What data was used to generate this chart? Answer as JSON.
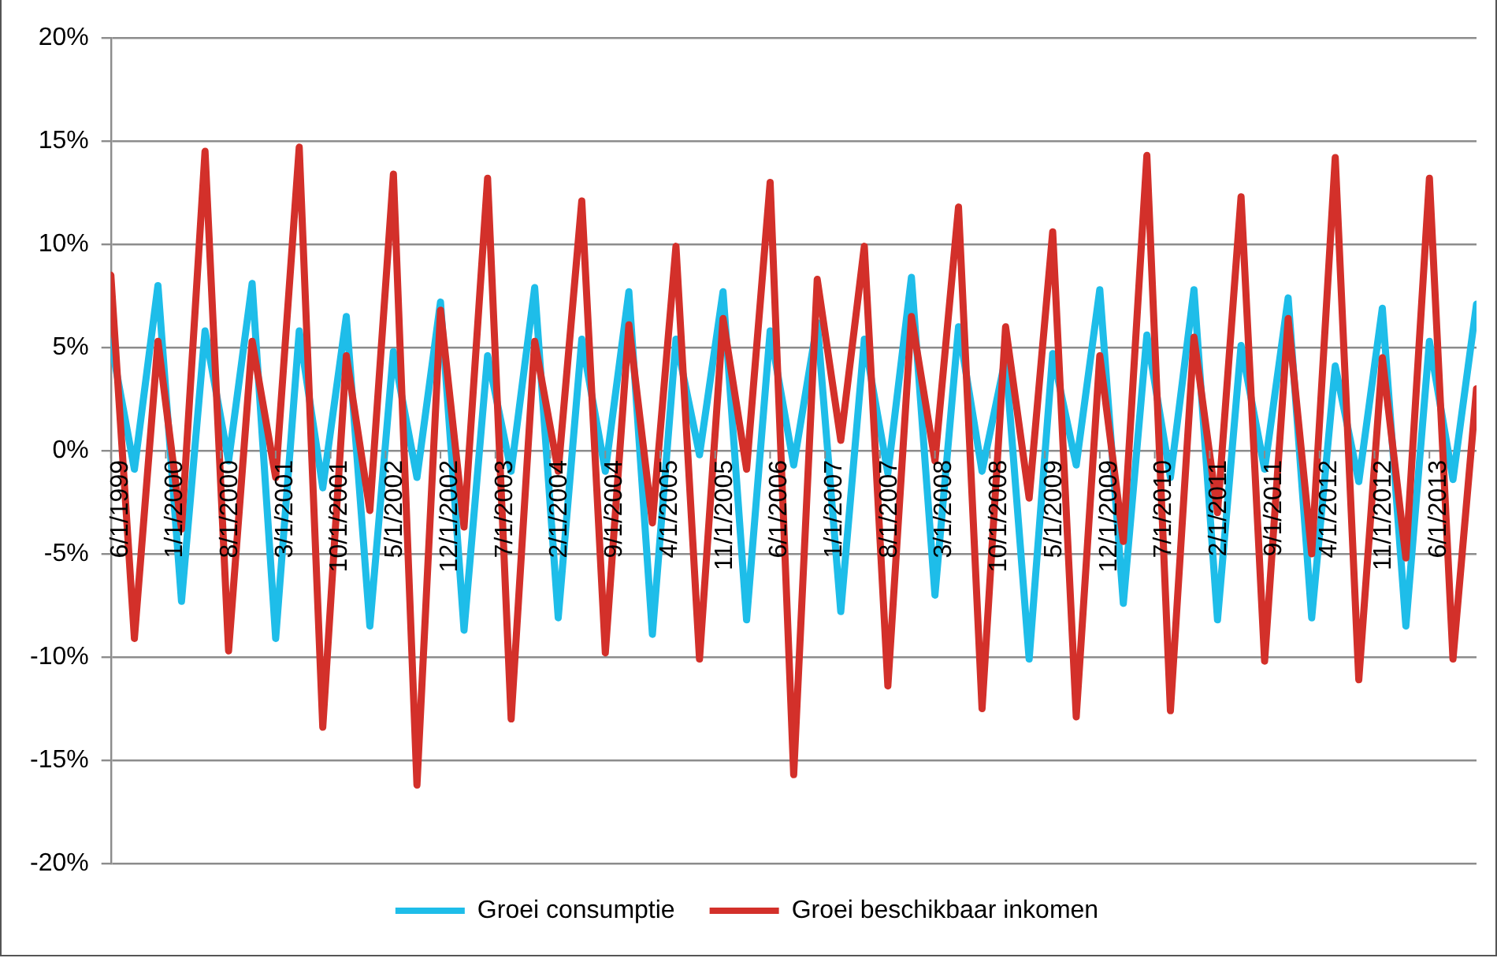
{
  "chart_data": {
    "type": "line",
    "x": [
      "1999-06",
      "1999-09",
      "1999-12",
      "2000-03",
      "2000-06",
      "2000-09",
      "2000-12",
      "2001-03",
      "2001-06",
      "2001-09",
      "2001-12",
      "2002-03",
      "2002-06",
      "2002-09",
      "2002-12",
      "2003-03",
      "2003-06",
      "2003-09",
      "2003-12",
      "2004-03",
      "2004-06",
      "2004-09",
      "2004-12",
      "2005-03",
      "2005-06",
      "2005-09",
      "2005-12",
      "2006-03",
      "2006-06",
      "2006-09",
      "2006-12",
      "2007-03",
      "2007-06",
      "2007-09",
      "2007-12",
      "2008-03",
      "2008-06",
      "2008-09",
      "2008-12",
      "2009-03",
      "2009-06",
      "2009-09",
      "2009-12",
      "2010-03",
      "2010-06",
      "2010-09",
      "2010-12",
      "2011-03",
      "2011-06",
      "2011-09",
      "2011-12",
      "2012-03",
      "2012-06",
      "2012-09",
      "2012-12",
      "2013-03",
      "2013-06",
      "2013-09",
      "2013-12"
    ],
    "series": [
      {
        "name": "Groei consumptie",
        "color": "#1ebde9",
        "values": [
          5.3,
          -0.9,
          8.0,
          -7.3,
          5.8,
          -0.5,
          8.1,
          -9.1,
          5.8,
          -1.8,
          6.5,
          -8.5,
          4.8,
          -1.3,
          7.2,
          -8.7,
          4.6,
          -1.0,
          7.9,
          -8.1,
          5.4,
          -1.0,
          7.7,
          -8.9,
          5.4,
          -0.2,
          7.7,
          -8.2,
          5.8,
          -0.7,
          6.2,
          -7.8,
          5.4,
          -1.1,
          8.4,
          -7.0,
          6.0,
          -1.0,
          4.5,
          -10.1,
          4.7,
          -0.7,
          7.8,
          -7.4,
          5.6,
          -1.3,
          7.8,
          -8.2,
          5.1,
          -0.9,
          7.4,
          -8.1,
          4.1,
          -1.5,
          6.9,
          -8.5,
          5.3,
          -1.4,
          7.1
        ]
      },
      {
        "name": "Groei beschikbaar inkomen",
        "color": "#d3302a",
        "values": [
          8.5,
          -9.1,
          5.3,
          -3.8,
          14.5,
          -9.7,
          5.3,
          -1.3,
          14.7,
          -13.4,
          4.6,
          -2.9,
          13.4,
          -16.2,
          6.8,
          -3.7,
          13.2,
          -13.0,
          5.3,
          -1.0,
          12.1,
          -9.8,
          6.1,
          -3.5,
          9.9,
          -10.1,
          6.4,
          -0.9,
          13.0,
          -15.7,
          8.3,
          0.5,
          9.9,
          -11.4,
          6.5,
          -0.5,
          11.8,
          -12.5,
          6.0,
          -2.3,
          10.6,
          -12.9,
          4.6,
          -4.4,
          14.3,
          -12.6,
          5.5,
          -3.0,
          12.3,
          -10.2,
          6.4,
          -5.0,
          14.2,
          -11.1,
          4.5,
          -5.2,
          13.2,
          -10.1,
          3.0
        ]
      }
    ],
    "xlim": [
      "1999-06",
      "2013-12"
    ],
    "xticks": [
      {
        "value": "1999-06",
        "label": "6/1/1999"
      },
      {
        "value": "2000-01",
        "label": "1/1/2000"
      },
      {
        "value": "2000-08",
        "label": "8/1/2000"
      },
      {
        "value": "2001-03",
        "label": "3/1/2001"
      },
      {
        "value": "2001-10",
        "label": "10/1/2001"
      },
      {
        "value": "2002-05",
        "label": "5/1/2002"
      },
      {
        "value": "2002-12",
        "label": "12/1/2002"
      },
      {
        "value": "2003-07",
        "label": "7/1/2003"
      },
      {
        "value": "2004-02",
        "label": "2/1/2004"
      },
      {
        "value": "2004-09",
        "label": "9/1/2004"
      },
      {
        "value": "2005-04",
        "label": "4/1/2005"
      },
      {
        "value": "2005-11",
        "label": "11/1/2005"
      },
      {
        "value": "2006-06",
        "label": "6/1/2006"
      },
      {
        "value": "2007-01",
        "label": "1/1/2007"
      },
      {
        "value": "2007-08",
        "label": "8/1/2007"
      },
      {
        "value": "2008-03",
        "label": "3/1/2008"
      },
      {
        "value": "2008-10",
        "label": "10/1/2008"
      },
      {
        "value": "2009-05",
        "label": "5/1/2009"
      },
      {
        "value": "2009-12",
        "label": "12/1/2009"
      },
      {
        "value": "2010-07",
        "label": "7/1/2010"
      },
      {
        "value": "2011-02",
        "label": "2/1/2011"
      },
      {
        "value": "2011-09",
        "label": "9/1/2011"
      },
      {
        "value": "2012-04",
        "label": "4/1/2012"
      },
      {
        "value": "2012-11",
        "label": "11/1/2012"
      },
      {
        "value": "2013-06",
        "label": "6/1/2013"
      }
    ],
    "ylim": [
      -20,
      20
    ],
    "yticks": [
      {
        "value": -20,
        "label": "-20%"
      },
      {
        "value": -15,
        "label": "-15%"
      },
      {
        "value": -10,
        "label": "-10%"
      },
      {
        "value": -5,
        "label": "-5%"
      },
      {
        "value": 0,
        "label": "0%"
      },
      {
        "value": 5,
        "label": "5%"
      },
      {
        "value": 10,
        "label": "10%"
      },
      {
        "value": 15,
        "label": "15%"
      },
      {
        "value": 20,
        "label": "20%"
      }
    ],
    "grid": "y",
    "legend": "bottom",
    "marker": "none",
    "line_style": "solid"
  }
}
